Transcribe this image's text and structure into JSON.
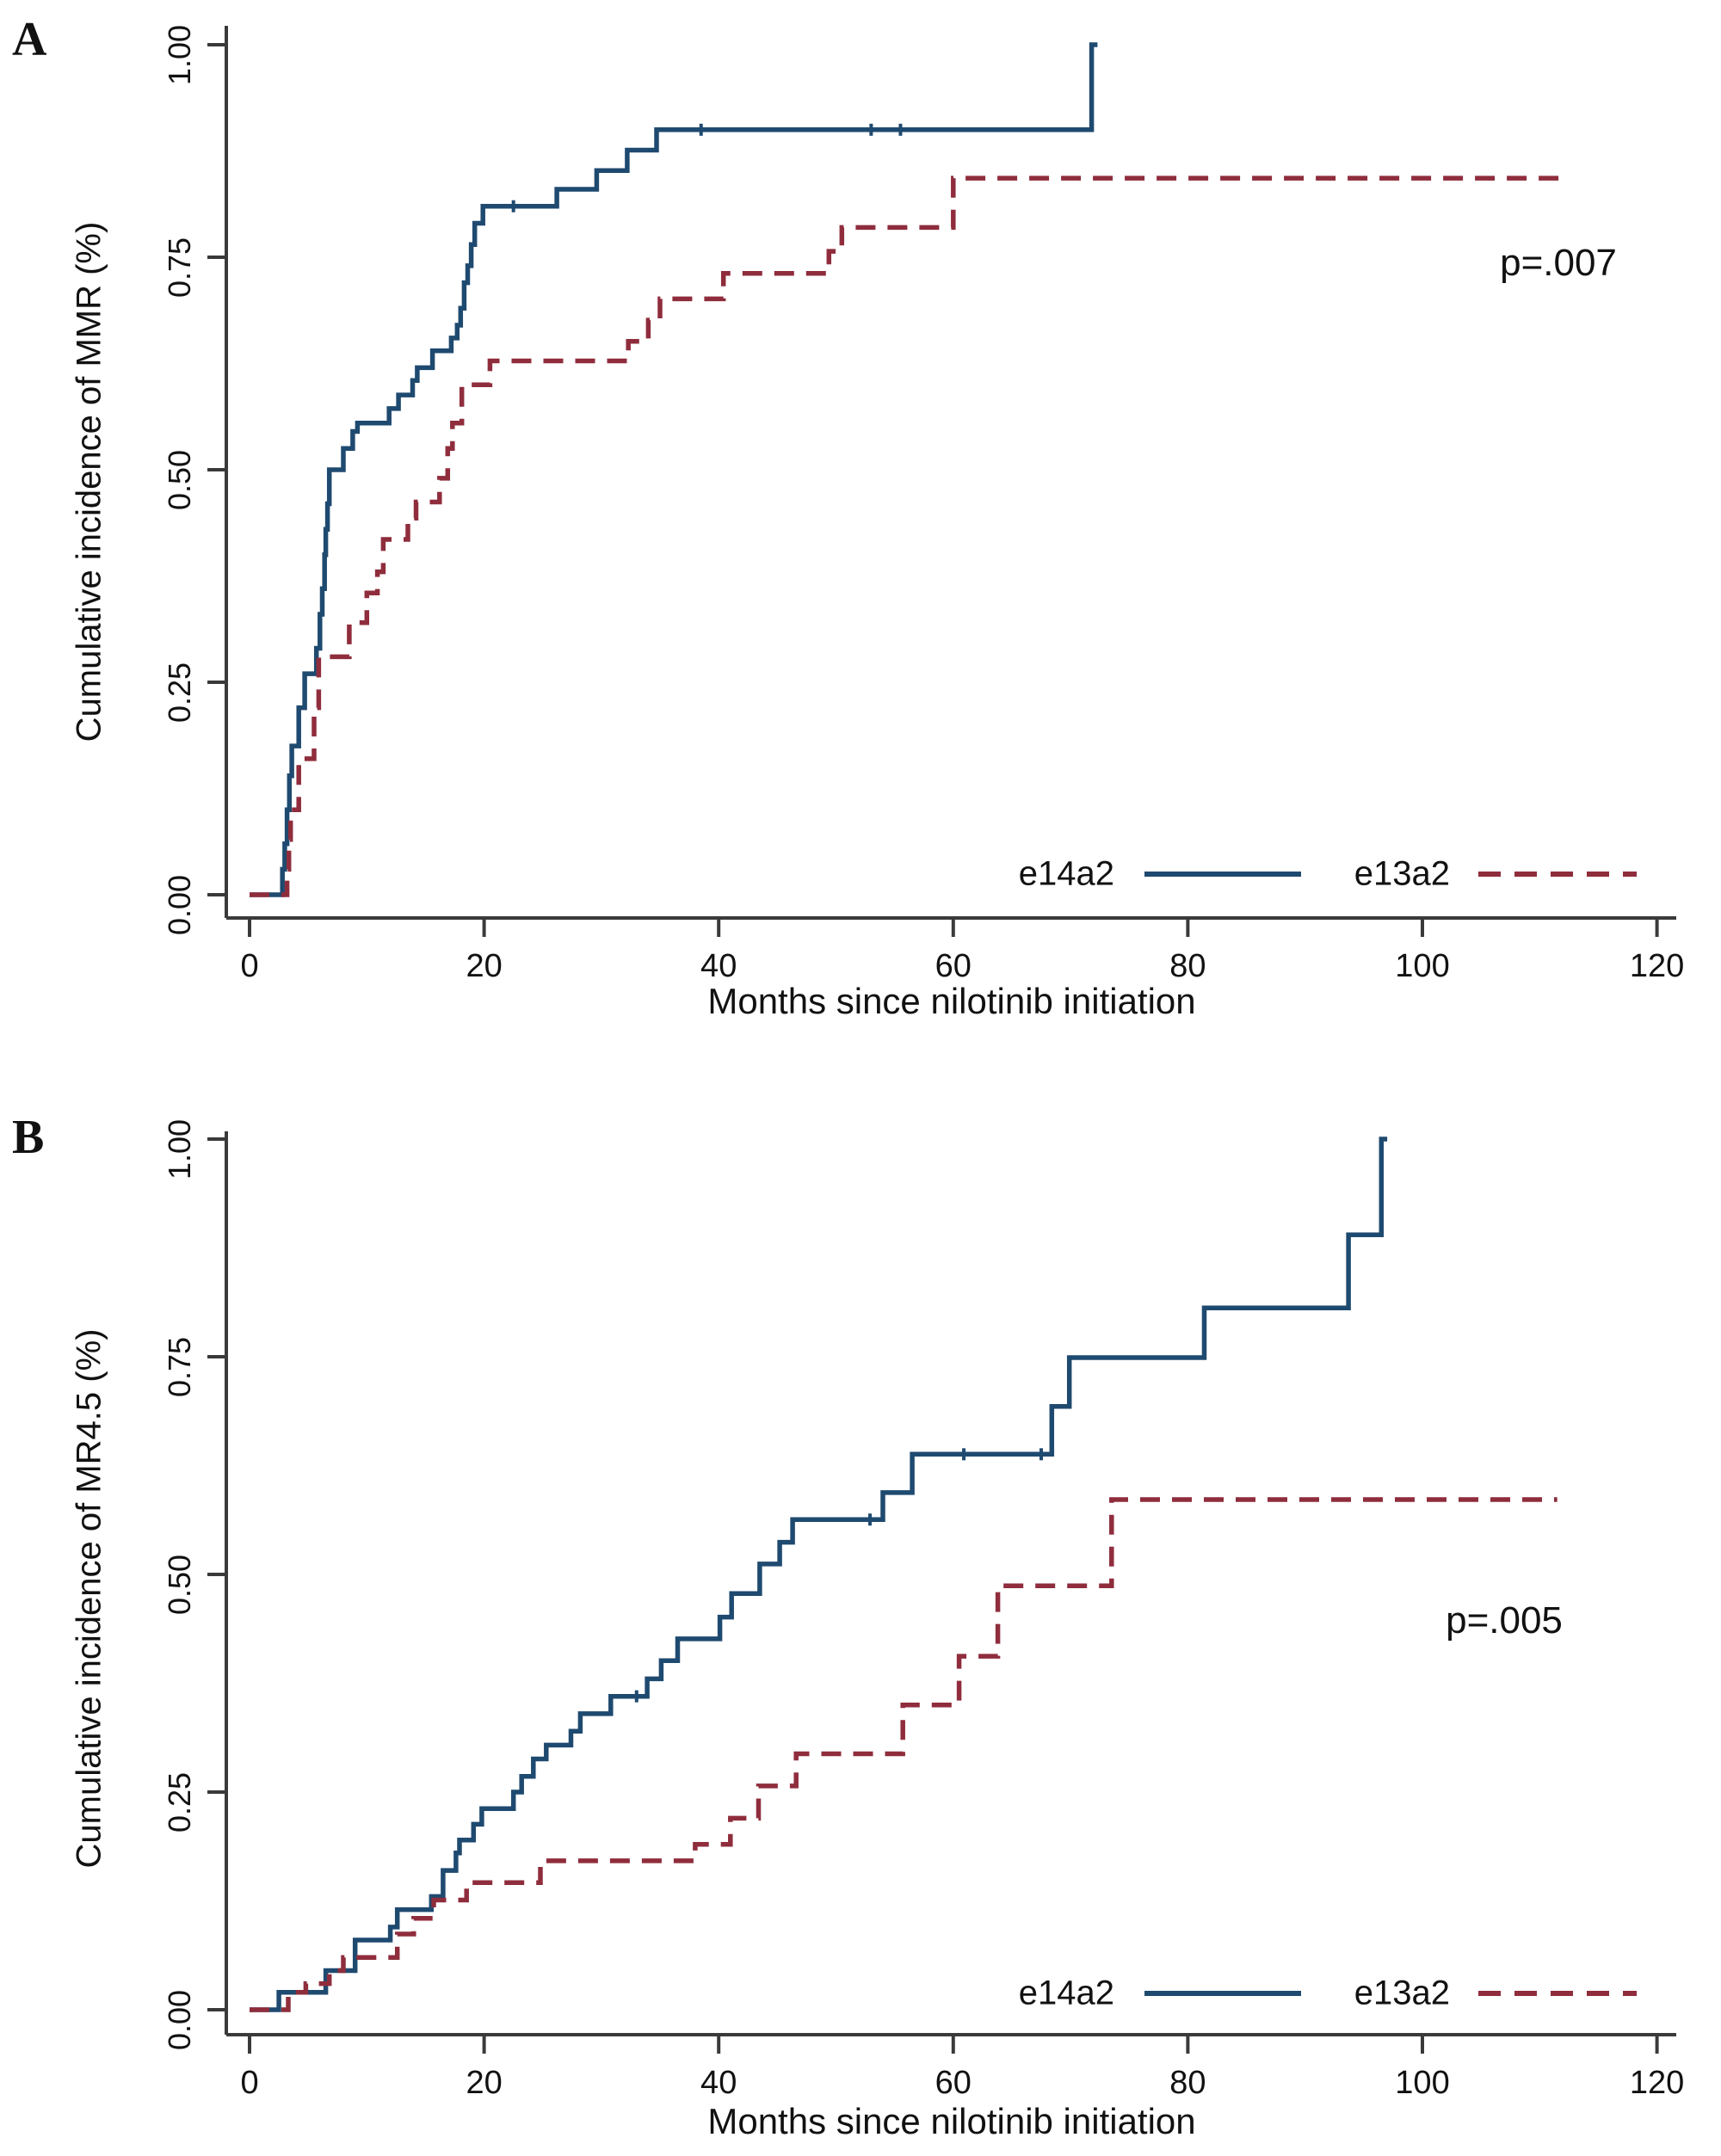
{
  "figure": {
    "panel_labels": [
      "A",
      "B"
    ]
  },
  "chart_data": [
    {
      "panel": "A",
      "type": "line",
      "subtype": "step-cumulative-incidence",
      "xlabel": "Months since nilotinib initiation",
      "ylabel": "Cumulative incidence of MMR (%)",
      "annotation": "p=.007",
      "xlim": [
        0,
        121.5
      ],
      "ylim": [
        0,
        1.0
      ],
      "xticks": [
        0,
        20,
        40,
        60,
        80,
        100,
        120
      ],
      "yticks": [
        "0.00",
        "0.25",
        "0.50",
        "0.75",
        "1.00"
      ],
      "grid": "off",
      "legend_position": "inside-bottom-right",
      "series": [
        {
          "name": "e14a2",
          "style": "solid",
          "color": "#1f4a70",
          "end_x": 72.3,
          "censor_ticks": [
            22.5,
            38.5,
            53,
            55.5
          ],
          "points": [
            [
              0,
              0
            ],
            [
              2.7,
              0
            ],
            [
              2.8,
              0.03
            ],
            [
              3.0,
              0.06
            ],
            [
              3.2,
              0.1
            ],
            [
              3.4,
              0.14
            ],
            [
              3.6,
              0.175
            ],
            [
              4.2,
              0.22
            ],
            [
              4.7,
              0.26
            ],
            [
              5.7,
              0.29
            ],
            [
              6.0,
              0.33
            ],
            [
              6.2,
              0.36
            ],
            [
              6.4,
              0.4
            ],
            [
              6.5,
              0.43
            ],
            [
              6.65,
              0.46
            ],
            [
              6.8,
              0.5
            ],
            [
              8.0,
              0.525
            ],
            [
              8.8,
              0.545
            ],
            [
              9.2,
              0.555
            ],
            [
              11.9,
              0.572
            ],
            [
              12.7,
              0.588
            ],
            [
              13.9,
              0.605
            ],
            [
              14.3,
              0.62
            ],
            [
              15.6,
              0.64
            ],
            [
              17.2,
              0.655
            ],
            [
              17.7,
              0.67
            ],
            [
              18.0,
              0.69
            ],
            [
              18.3,
              0.72
            ],
            [
              18.6,
              0.74
            ],
            [
              18.9,
              0.765
            ],
            [
              19.2,
              0.79
            ],
            [
              19.9,
              0.81
            ],
            [
              26.2,
              0.83
            ],
            [
              29.6,
              0.852
            ],
            [
              32.2,
              0.876
            ],
            [
              34.7,
              0.9
            ],
            [
              71.8,
              1.0
            ]
          ]
        },
        {
          "name": "e13a2",
          "style": "dashed",
          "color": "#8f2d3c",
          "end_x": 111.8,
          "censor_ticks": [],
          "points": [
            [
              0,
              0
            ],
            [
              3.1,
              0
            ],
            [
              3.2,
              0.03
            ],
            [
              3.35,
              0.065
            ],
            [
              3.5,
              0.1
            ],
            [
              4.2,
              0.16
            ],
            [
              5.5,
              0.22
            ],
            [
              5.9,
              0.28
            ],
            [
              8.5,
              0.32
            ],
            [
              10.0,
              0.355
            ],
            [
              10.9,
              0.38
            ],
            [
              11.4,
              0.418
            ],
            [
              13.5,
              0.443
            ],
            [
              14.2,
              0.462
            ],
            [
              16.2,
              0.49
            ],
            [
              16.9,
              0.525
            ],
            [
              17.3,
              0.555
            ],
            [
              18.1,
              0.6
            ],
            [
              20.5,
              0.628
            ],
            [
              32.3,
              0.651
            ],
            [
              34.0,
              0.676
            ],
            [
              35.0,
              0.701
            ],
            [
              40.4,
              0.731
            ],
            [
              49.4,
              0.757
            ],
            [
              50.5,
              0.785
            ],
            [
              60.0,
              0.843
            ]
          ]
        }
      ]
    },
    {
      "panel": "B",
      "type": "line",
      "subtype": "step-cumulative-incidence",
      "xlabel": "Months since nilotinib initiation",
      "ylabel": "Cumulative incidence of MR4.5 (%)",
      "annotation": "p=.005",
      "xlim": [
        0,
        121.5
      ],
      "ylim": [
        0,
        1.0
      ],
      "xticks": [
        0,
        20,
        40,
        60,
        80,
        100,
        120
      ],
      "yticks": [
        "0.00",
        "0.25",
        "0.50",
        "0.75",
        "1.00"
      ],
      "grid": "off",
      "legend_position": "inside-bottom-right",
      "series": [
        {
          "name": "e14a2",
          "style": "solid",
          "color": "#1f4a70",
          "end_x": 97.0,
          "censor_ticks": [
            33,
            52.9,
            60.9,
            67.5
          ],
          "points": [
            [
              0,
              0
            ],
            [
              2.4,
              0
            ],
            [
              2.5,
              0.02
            ],
            [
              6.5,
              0.045
            ],
            [
              9.0,
              0.08
            ],
            [
              12.0,
              0.095
            ],
            [
              12.6,
              0.115
            ],
            [
              15.5,
              0.13
            ],
            [
              16.5,
              0.16
            ],
            [
              17.6,
              0.18
            ],
            [
              17.9,
              0.195
            ],
            [
              19.1,
              0.213
            ],
            [
              19.8,
              0.231
            ],
            [
              22.5,
              0.25
            ],
            [
              23.2,
              0.268
            ],
            [
              24.2,
              0.288
            ],
            [
              25.3,
              0.304
            ],
            [
              27.4,
              0.32
            ],
            [
              28.2,
              0.34
            ],
            [
              30.8,
              0.36
            ],
            [
              33.9,
              0.38
            ],
            [
              35.1,
              0.401
            ],
            [
              36.5,
              0.426
            ],
            [
              40.1,
              0.451
            ],
            [
              41.1,
              0.478
            ],
            [
              43.5,
              0.512
            ],
            [
              45.2,
              0.537
            ],
            [
              46.3,
              0.563
            ],
            [
              54.0,
              0.594
            ],
            [
              56.5,
              0.638
            ],
            [
              68.4,
              0.693
            ],
            [
              69.9,
              0.749
            ],
            [
              81.4,
              0.806
            ],
            [
              93.7,
              0.89
            ],
            [
              96.5,
              1.0
            ]
          ]
        },
        {
          "name": "e13a2",
          "style": "dashed",
          "color": "#8f2d3c",
          "end_x": 111.5,
          "censor_ticks": [],
          "points": [
            [
              0,
              0
            ],
            [
              3.2,
              0
            ],
            [
              3.3,
              0.02
            ],
            [
              4.8,
              0.03
            ],
            [
              6.8,
              0.045
            ],
            [
              8.0,
              0.06
            ],
            [
              12.6,
              0.087
            ],
            [
              14.0,
              0.105
            ],
            [
              15.7,
              0.126
            ],
            [
              18.5,
              0.146
            ],
            [
              24.8,
              0.171
            ],
            [
              38.0,
              0.19
            ],
            [
              41.0,
              0.22
            ],
            [
              43.4,
              0.257
            ],
            [
              46.6,
              0.294
            ],
            [
              55.7,
              0.35
            ],
            [
              60.5,
              0.406
            ],
            [
              63.8,
              0.487
            ],
            [
              73.5,
              0.586
            ]
          ]
        }
      ]
    }
  ]
}
